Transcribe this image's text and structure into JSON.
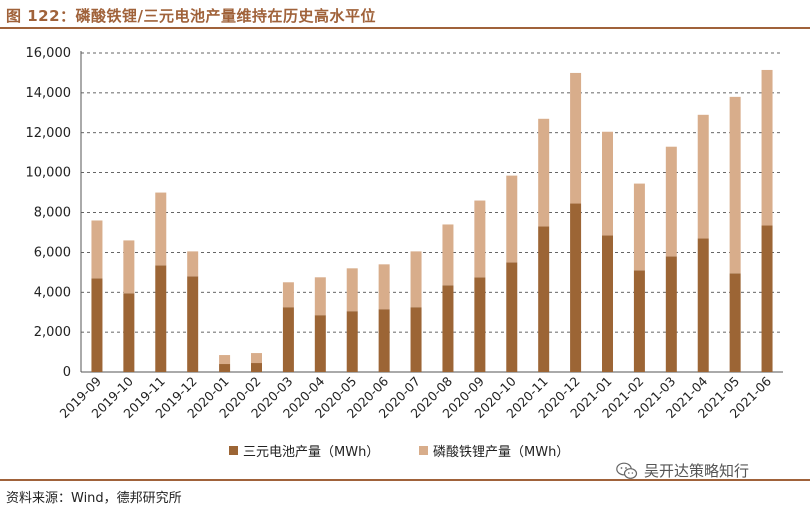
{
  "title": "图 122：磷酸铁锂/三元电池产量维持在历史高水平位",
  "source": "资料来源：Wind，德邦研究所",
  "watermark": "吴开达策略知行",
  "chart_data": {
    "type": "bar",
    "stacked": true,
    "categories": [
      "2019-09",
      "2019-10",
      "2019-11",
      "2019-12",
      "2020-01",
      "2020-02",
      "2020-03",
      "2020-04",
      "2020-05",
      "2020-06",
      "2020-07",
      "2020-08",
      "2020-09",
      "2020-10",
      "2020-11",
      "2020-12",
      "2021-01",
      "2021-02",
      "2021-03",
      "2021-04",
      "2021-05",
      "2021-06"
    ],
    "series": [
      {
        "name": "三元电池产量（MWh）",
        "color": "#9c6535",
        "values": [
          4700,
          3950,
          5350,
          4800,
          400,
          450,
          3250,
          2850,
          3050,
          3150,
          3250,
          4350,
          4750,
          5500,
          7300,
          8450,
          6850,
          5100,
          5800,
          6700,
          4950,
          7350
        ]
      },
      {
        "name": "磷酸铁锂产量（MWh）",
        "color": "#d8ad8b",
        "values": [
          2900,
          2650,
          3650,
          1250,
          450,
          500,
          1250,
          1900,
          2150,
          2250,
          2800,
          3050,
          3850,
          4350,
          5400,
          6550,
          5200,
          4350,
          5500,
          6200,
          8850,
          7800
        ]
      }
    ],
    "ylim": [
      0,
      16000
    ],
    "yticks": [
      0,
      2000,
      4000,
      6000,
      8000,
      10000,
      12000,
      14000,
      16000
    ],
    "ytick_labels": [
      "0",
      "2,000",
      "4,000",
      "6,000",
      "8,000",
      "10,000",
      "12,000",
      "14,000",
      "16,000"
    ],
    "grid": "horizontal dashed",
    "legend_position": "bottom-center"
  }
}
